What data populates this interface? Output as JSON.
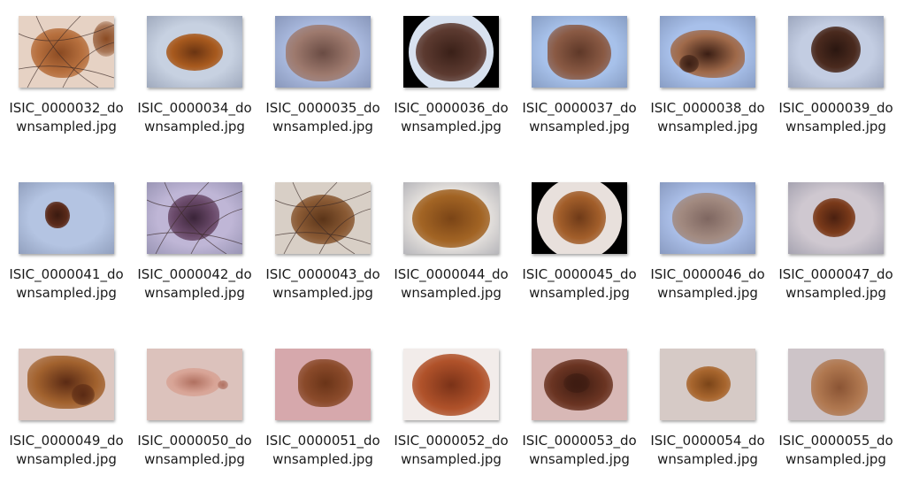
{
  "files": [
    {
      "name": "ISIC_0000032_downsampled.jpg",
      "bg": "#e6d2c4",
      "lesion": "#b7703e",
      "core": "#8a4a22",
      "icon": "image-thumbnail-icon"
    },
    {
      "name": "ISIC_0000034_downsampled.jpg",
      "bg": "#c7d1e1",
      "lesion": "#a85a1e",
      "core": "#6a3412",
      "icon": "image-thumbnail-icon"
    },
    {
      "name": "ISIC_0000035_downsampled.jpg",
      "bg": "#a9b9de",
      "lesion": "#9e7a6e",
      "core": "#6a4c44",
      "icon": "image-thumbnail-icon"
    },
    {
      "name": "ISIC_0000036_downsampled.jpg",
      "bg": "#000000",
      "lesion": "#5c3a30",
      "core": "#3a2018",
      "icon": "image-thumbnail-icon"
    },
    {
      "name": "ISIC_0000037_downsampled.jpg",
      "bg": "#a7c1ea",
      "lesion": "#8a5a44",
      "core": "#5e3828",
      "icon": "image-thumbnail-icon"
    },
    {
      "name": "ISIC_0000038_downsampled.jpg",
      "bg": "#a8c0ea",
      "lesion": "#a06a4a",
      "core": "#3a1e14",
      "icon": "image-thumbnail-icon"
    },
    {
      "name": "ISIC_0000039_downsampled.jpg",
      "bg": "#c3cde2",
      "lesion": "#4a2a1e",
      "core": "#2a1610",
      "icon": "image-thumbnail-icon"
    },
    {
      "name": "ISIC_0000041_downsampled.jpg",
      "bg": "#b4c4e2",
      "lesion": "#5a2a1a",
      "core": "#3a1a10",
      "icon": "image-thumbnail-icon"
    },
    {
      "name": "ISIC_0000042_downsampled.jpg",
      "bg": "#bfb6d6",
      "lesion": "#6a4a6a",
      "core": "#3a2438",
      "icon": "image-thumbnail-icon"
    },
    {
      "name": "ISIC_0000043_downsampled.jpg",
      "bg": "#d8cfc6",
      "lesion": "#8a5a34",
      "core": "#5a3418",
      "icon": "image-thumbnail-icon"
    },
    {
      "name": "ISIC_0000044_downsampled.jpg",
      "bg": "#e6e2de",
      "lesion": "#a26424",
      "core": "#7a4416",
      "icon": "image-thumbnail-icon"
    },
    {
      "name": "ISIC_0000045_downsampled.jpg",
      "bg": "#000000",
      "lesion": "#a25e2a",
      "core": "#6e3a18",
      "icon": "image-thumbnail-icon"
    },
    {
      "name": "ISIC_0000046_downsampled.jpg",
      "bg": "#a9bde6",
      "lesion": "#a28a80",
      "core": "#7e6660",
      "icon": "image-thumbnail-icon"
    },
    {
      "name": "ISIC_0000047_downsampled.jpg",
      "bg": "#cfc8d0",
      "lesion": "#7a3a1a",
      "core": "#4a2010",
      "icon": "image-thumbnail-icon"
    },
    {
      "name": "ISIC_0000049_downsampled.jpg",
      "bg": "#ddc8c2",
      "lesion": "#a2622e",
      "core": "#5a2a14",
      "icon": "image-thumbnail-icon"
    },
    {
      "name": "ISIC_0000050_downsampled.jpg",
      "bg": "#dcc2bc",
      "lesion": "#d8a496",
      "core": "#b07060",
      "icon": "image-thumbnail-icon"
    },
    {
      "name": "ISIC_0000051_downsampled.jpg",
      "bg": "#d6a8ac",
      "lesion": "#8a4a2a",
      "core": "#6a3418",
      "icon": "image-thumbnail-icon"
    },
    {
      "name": "ISIC_0000052_downsampled.jpg",
      "bg": "#f2ecea",
      "lesion": "#b0522a",
      "core": "#7a3218",
      "icon": "image-thumbnail-icon"
    },
    {
      "name": "ISIC_0000053_downsampled.jpg",
      "bg": "#d8b8b6",
      "lesion": "#6a3422",
      "core": "#3e1c12",
      "icon": "image-thumbnail-icon"
    },
    {
      "name": "ISIC_0000054_downsampled.jpg",
      "bg": "#d6cac6",
      "lesion": "#a8662e",
      "core": "#7a4418",
      "icon": "image-thumbnail-icon"
    },
    {
      "name": "ISIC_0000055_downsampled.jpg",
      "bg": "#cdc4c8",
      "lesion": "#b07850",
      "core": "#8a5434",
      "icon": "image-thumbnail-icon"
    }
  ]
}
